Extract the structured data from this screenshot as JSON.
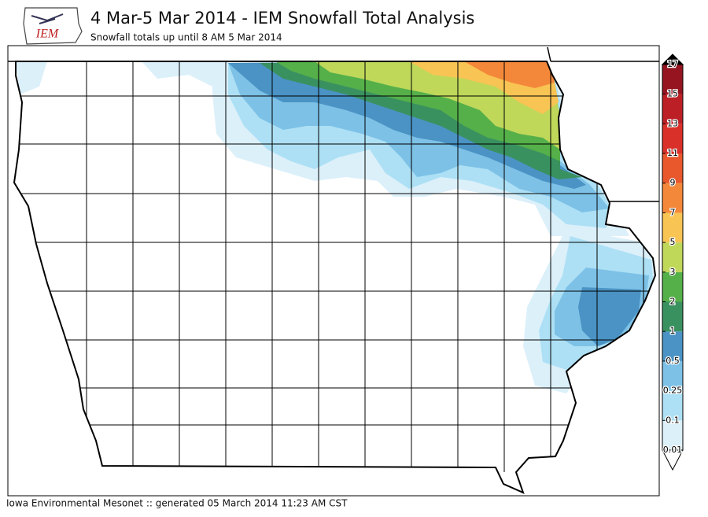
{
  "header": {
    "logo_text": "IEM",
    "title": "4 Mar-5 Mar 2014 - IEM Snowfall Total Analysis",
    "subtitle": "Snowfall totals up until 8 AM 5 Mar 2014"
  },
  "footer": "Iowa Environmental Mesonet :: generated 05 March 2014 11:23 AM CST",
  "colorbar": {
    "levels": [
      0.01,
      0.1,
      0.25,
      0.5,
      1,
      2,
      3,
      5,
      7,
      9,
      11,
      13,
      15,
      17
    ],
    "colors": [
      "#dcf0fa",
      "#ade0f5",
      "#7dc1e6",
      "#4a93c4",
      "#3a9160",
      "#55b04a",
      "#bfd85a",
      "#f8c453",
      "#f4883a",
      "#e8582c",
      "#d9302a",
      "#bd1f26",
      "#951420"
    ],
    "over_color": "#000000",
    "under_color": "#ffffff"
  }
}
